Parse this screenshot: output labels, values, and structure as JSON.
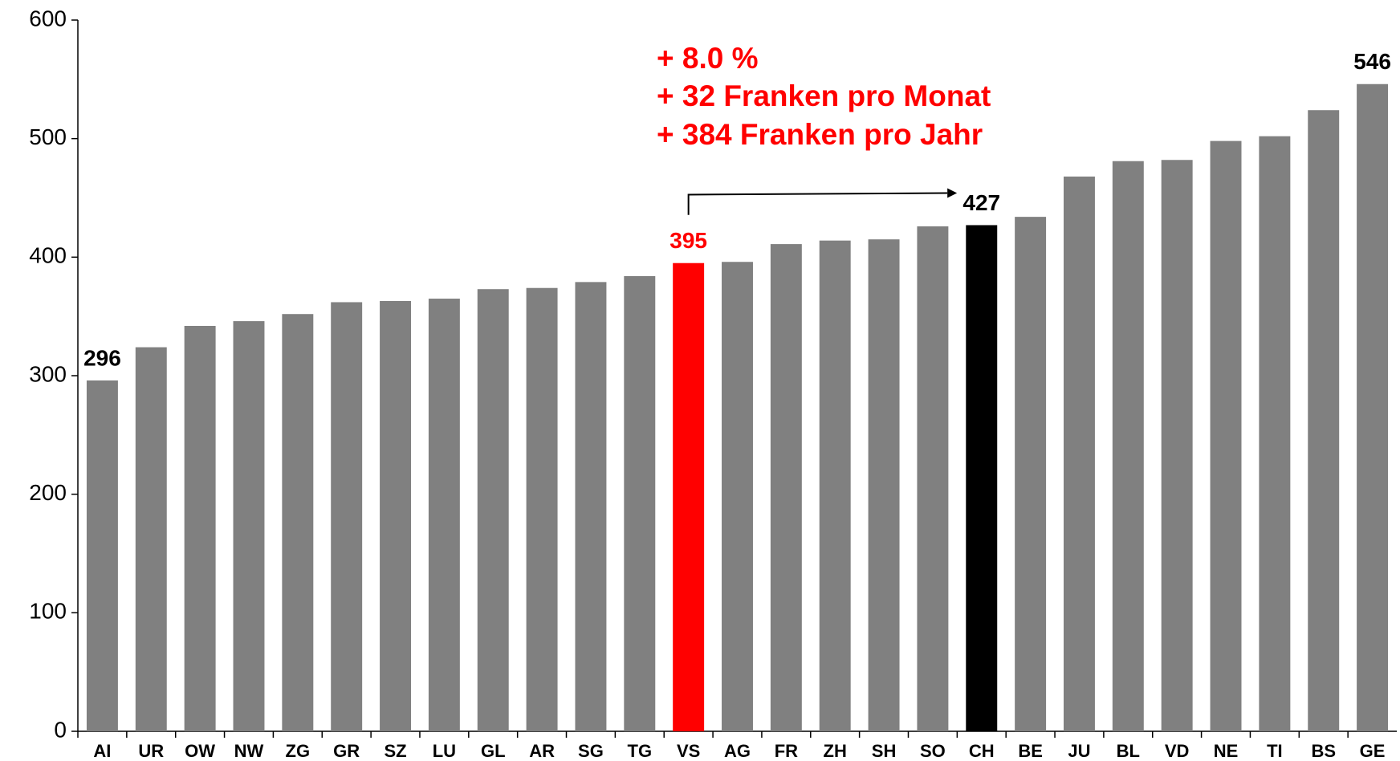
{
  "chart_data": {
    "type": "bar",
    "categories": [
      "AI",
      "UR",
      "OW",
      "NW",
      "ZG",
      "GR",
      "SZ",
      "LU",
      "GL",
      "AR",
      "SG",
      "TG",
      "VS",
      "AG",
      "FR",
      "ZH",
      "SH",
      "SO",
      "CH",
      "BE",
      "JU",
      "BL",
      "VD",
      "NE",
      "TI",
      "BS",
      "GE"
    ],
    "values": [
      296,
      324,
      342,
      346,
      352,
      362,
      363,
      365,
      373,
      374,
      379,
      384,
      395,
      396,
      411,
      414,
      415,
      426,
      427,
      434,
      468,
      481,
      482,
      498,
      502,
      524,
      546
    ],
    "value_labels": [
      "296",
      null,
      null,
      null,
      null,
      null,
      null,
      null,
      null,
      null,
      null,
      null,
      "395",
      null,
      null,
      null,
      null,
      null,
      "427",
      null,
      null,
      null,
      null,
      null,
      null,
      null,
      "546"
    ],
    "colors": [
      "#808080",
      "#808080",
      "#808080",
      "#808080",
      "#808080",
      "#808080",
      "#808080",
      "#808080",
      "#808080",
      "#808080",
      "#808080",
      "#808080",
      "#ff0000",
      "#808080",
      "#808080",
      "#808080",
      "#808080",
      "#808080",
      "#000000",
      "#808080",
      "#808080",
      "#808080",
      "#808080",
      "#808080",
      "#808080",
      "#808080",
      "#808080"
    ],
    "ylim": [
      0,
      600
    ],
    "yticks": [
      0,
      100,
      200,
      300,
      400,
      500,
      600
    ],
    "grid": false,
    "annotations": [
      "+ 8.0 %",
      "+ 32 Franken pro Monat",
      "+ 384 Franken pro Jahr"
    ]
  }
}
